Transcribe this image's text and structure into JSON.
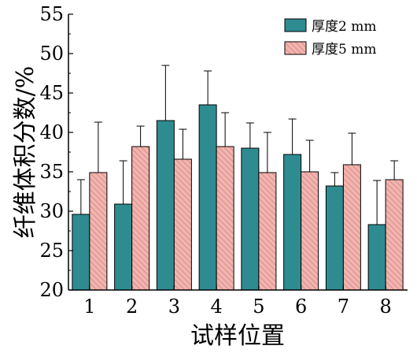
{
  "chart_data": {
    "type": "bar",
    "xlabel": "试样位置",
    "ylabel": "纤维体积分数/%",
    "ylim": [
      20,
      55
    ],
    "yticks": [
      20,
      25,
      30,
      35,
      40,
      45,
      50,
      55
    ],
    "categories": [
      "1",
      "2",
      "3",
      "4",
      "5",
      "6",
      "7",
      "8"
    ],
    "grid": false,
    "legend_position": "top-right",
    "series": [
      {
        "name": "厚度2 mm",
        "color": "#2e8c91",
        "pattern": "solid",
        "values": [
          29.6,
          30.9,
          41.5,
          43.5,
          38.0,
          37.2,
          33.2,
          28.3
        ],
        "errors": [
          4.4,
          5.5,
          7.0,
          4.3,
          3.2,
          4.5,
          1.7,
          5.6
        ]
      },
      {
        "name": "厚度5 mm",
        "color": "#f4b3ae",
        "pattern": "hatch",
        "values": [
          34.9,
          38.2,
          36.6,
          38.2,
          34.9,
          35.0,
          35.9,
          34.0
        ],
        "errors": [
          6.4,
          2.6,
          3.8,
          4.3,
          5.1,
          4.0,
          4.0,
          2.4
        ]
      }
    ]
  }
}
